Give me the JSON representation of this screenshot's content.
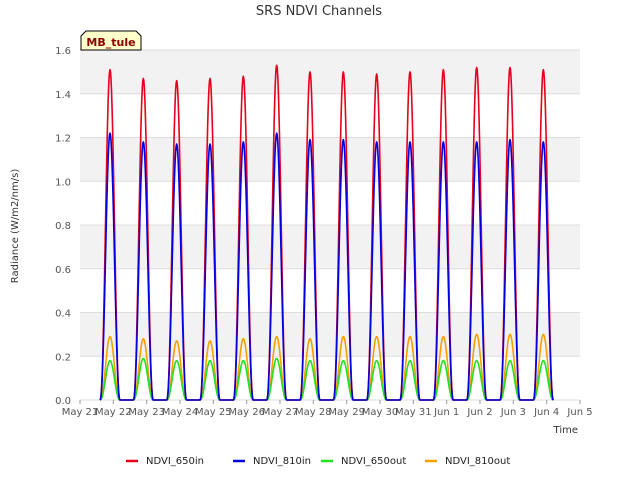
{
  "chart_data": {
    "type": "line",
    "title": "SRS NDVI Channels",
    "xlabel": "Time",
    "ylabel": "Radiance (W/m2/nm/s)",
    "site_label": "MB_tule",
    "xlim": [
      0,
      15
    ],
    "ylim": [
      0,
      1.6
    ],
    "x_ticks": [
      {
        "x": 0,
        "label": "May 21"
      },
      {
        "x": 1,
        "label": "May 22"
      },
      {
        "x": 2,
        "label": "May 23"
      },
      {
        "x": 3,
        "label": "May 24"
      },
      {
        "x": 4,
        "label": "May 25"
      },
      {
        "x": 5,
        "label": "May 26"
      },
      {
        "x": 6,
        "label": "May 27"
      },
      {
        "x": 7,
        "label": "May 28"
      },
      {
        "x": 8,
        "label": "May 29"
      },
      {
        "x": 9,
        "label": "May 30"
      },
      {
        "x": 10,
        "label": "May 31"
      },
      {
        "x": 11,
        "label": "Jun 1"
      },
      {
        "x": 12,
        "label": "Jun 2"
      },
      {
        "x": 13,
        "label": "Jun 3"
      },
      {
        "x": 14,
        "label": "Jun 4"
      },
      {
        "x": 15,
        "label": "Jun 5"
      }
    ],
    "y_ticks": [
      {
        "y": 0.0,
        "label": "0.0"
      },
      {
        "y": 0.2,
        "label": "0.2"
      },
      {
        "y": 0.4,
        "label": "0.4"
      },
      {
        "y": 0.6,
        "label": "0.6"
      },
      {
        "y": 0.8,
        "label": "0.8"
      },
      {
        "y": 1.0,
        "label": "1.0"
      },
      {
        "y": 1.2,
        "label": "1.2"
      },
      {
        "y": 1.4,
        "label": "1.4"
      },
      {
        "y": 1.6,
        "label": "1.6"
      }
    ],
    "day_peak_x": [
      0.9,
      1.9,
      2.9,
      3.9,
      4.9,
      5.9,
      6.9,
      7.9,
      8.9,
      9.9,
      10.9,
      11.9,
      12.9,
      13.9
    ],
    "series": [
      {
        "name": "NDVI_650in",
        "color": "#e8001c",
        "daily_peak": [
          1.51,
          1.47,
          1.46,
          1.47,
          1.48,
          1.53,
          1.5,
          1.5,
          1.49,
          1.5,
          1.51,
          1.52,
          1.52,
          1.51
        ]
      },
      {
        "name": "NDVI_810in",
        "color": "#0000e0",
        "daily_peak": [
          1.22,
          1.18,
          1.17,
          1.17,
          1.18,
          1.22,
          1.19,
          1.19,
          1.18,
          1.18,
          1.18,
          1.18,
          1.19,
          1.18
        ]
      },
      {
        "name": "NDVI_650out",
        "color": "#22e022",
        "daily_peak": [
          0.18,
          0.19,
          0.18,
          0.18,
          0.18,
          0.19,
          0.18,
          0.18,
          0.18,
          0.18,
          0.18,
          0.18,
          0.18,
          0.18
        ]
      },
      {
        "name": "NDVI_810out",
        "color": "#f5a000",
        "daily_peak": [
          0.29,
          0.28,
          0.27,
          0.27,
          0.28,
          0.29,
          0.28,
          0.29,
          0.29,
          0.29,
          0.29,
          0.3,
          0.3,
          0.3
        ]
      }
    ],
    "grid": true,
    "legend_position": "bottom"
  }
}
